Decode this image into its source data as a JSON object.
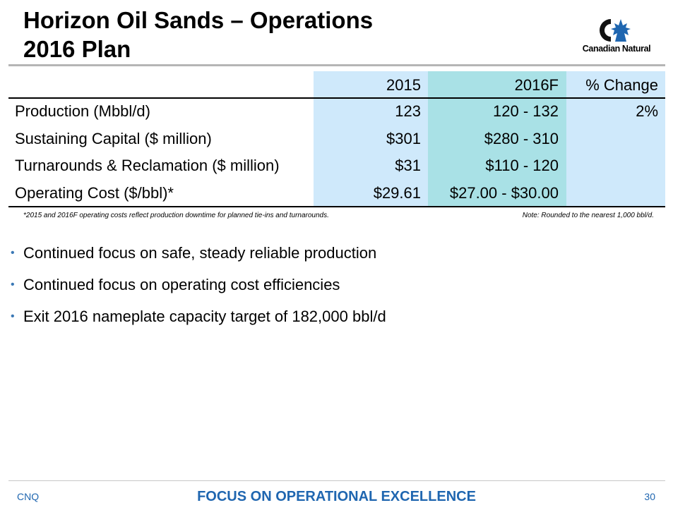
{
  "slide": {
    "title_line1": "Horizon Oil Sands – Operations",
    "title_line2": "2016 Plan",
    "logo_text": "Canadian Natural"
  },
  "table": {
    "headers": [
      "2015",
      "2016F",
      "% Change"
    ],
    "rows": [
      {
        "label": "Production (Mbbl/d)",
        "v2015": "123",
        "v2016": "120 - 132",
        "pct": "2%"
      },
      {
        "label": "Sustaining Capital ($ million)",
        "v2015": "$301",
        "v2016": "$280 - 310",
        "pct": ""
      },
      {
        "label": "Turnarounds & Reclamation ($ million)",
        "v2015": "$31",
        "v2016": "$110 - 120",
        "pct": ""
      },
      {
        "label": "Operating Cost ($/bbl)*",
        "v2015": "$29.61",
        "v2016": "$27.00 - $30.00",
        "pct": ""
      }
    ],
    "footnote": "*2015 and 2016F operating costs reflect production downtime for planned tie-ins and turnarounds.",
    "note": "Note: Rounded to the nearest 1,000 bbl/d."
  },
  "bullets": [
    "Continued focus on safe, steady reliable production",
    "Continued focus on operating cost efficiencies",
    "Exit 2016 nameplate capacity target of 182,000 bbl/d"
  ],
  "footer": {
    "left": "CNQ",
    "center": "FOCUS ON OPERATIONAL EXCELLENCE",
    "page": "30"
  },
  "colors": {
    "col_2015_bg": "#cfe9fb",
    "col_2016_bg": "#a9e1e6",
    "col_pct_bg": "#cfe9fb",
    "footer_blue": "#1f66b0",
    "bullet_blue": "#3a78b5"
  }
}
